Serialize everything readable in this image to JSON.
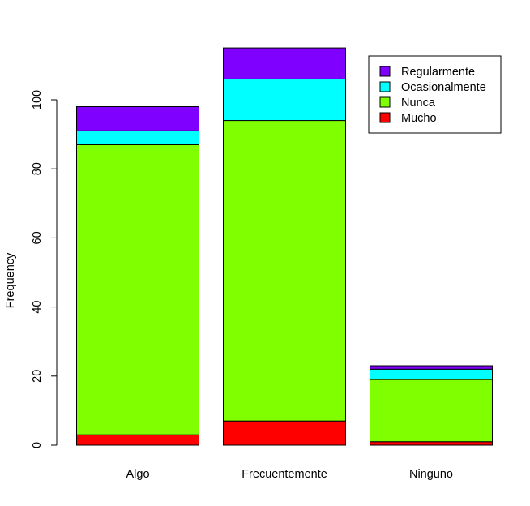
{
  "chart_data": {
    "type": "bar",
    "stacked": true,
    "title": "",
    "xlabel": "",
    "ylabel": "Frequency",
    "ylim": [
      0,
      115
    ],
    "yticks": [
      0,
      20,
      40,
      60,
      80,
      100
    ],
    "categories": [
      "Algo",
      "Frecuentemente",
      "Ninguno"
    ],
    "series": [
      {
        "name": "Mucho",
        "color": "#ff0000",
        "values": [
          3,
          7,
          1
        ]
      },
      {
        "name": "Nunca",
        "color": "#80ff00",
        "values": [
          84,
          87,
          18
        ]
      },
      {
        "name": "Ocasionalmente",
        "color": "#00ffff",
        "values": [
          4,
          12,
          3
        ]
      },
      {
        "name": "Regularmente",
        "color": "#8000ff",
        "values": [
          7,
          9,
          1
        ]
      }
    ],
    "legend": {
      "position": "top-right",
      "order": [
        "Regularmente",
        "Ocasionalmente",
        "Nunca",
        "Mucho"
      ]
    },
    "grid": false
  }
}
